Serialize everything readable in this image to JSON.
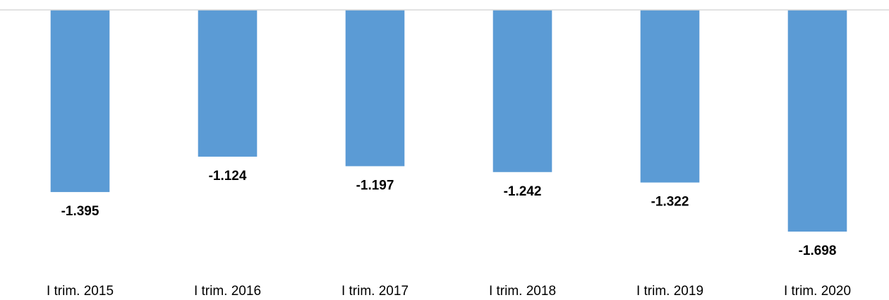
{
  "chart_data": {
    "type": "bar",
    "categories": [
      "I trim. 2015",
      "I trim. 2016",
      "I trim. 2017",
      "I trim. 2018",
      "I trim. 2019",
      "I trim. 2020"
    ],
    "values": [
      -1395,
      -1124,
      -1197,
      -1242,
      -1322,
      -1698
    ],
    "value_labels": [
      "-1.395",
      "-1.124",
      "-1.197",
      "-1.242",
      "-1.322",
      "-1.698"
    ],
    "color": "#5b9bd5",
    "ylim": [
      -2000,
      0
    ]
  }
}
